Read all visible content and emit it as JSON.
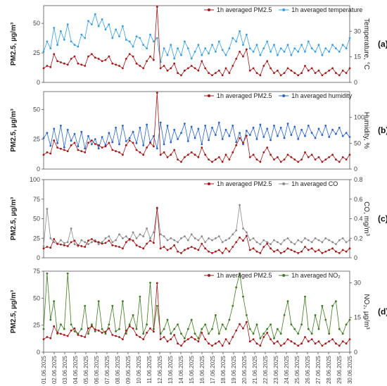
{
  "chart_data": [
    {
      "type": "line",
      "tag": "(a)",
      "ylabel": "PM2.5, µg/m³",
      "y2label": "Temperature, °C",
      "ylim": [
        0,
        65
      ],
      "yticks": [
        0,
        25,
        50
      ],
      "y2lim": [
        0,
        45
      ],
      "y2ticks": [
        0,
        15,
        30
      ],
      "legend_placement": "top-right",
      "series": [
        {
          "name": "1h averaged PM2.5",
          "axis": "left",
          "color": "#a01818",
          "marker": "circle",
          "values": [
            12,
            14,
            13,
            24,
            18,
            17,
            16,
            15,
            20,
            22,
            16,
            15,
            14,
            22,
            24,
            21,
            20,
            18,
            19,
            22,
            16,
            15,
            14,
            12,
            20,
            24,
            22,
            16,
            14,
            12,
            18,
            22,
            19,
            64,
            12,
            14,
            10,
            12,
            16,
            8,
            6,
            10,
            12,
            14,
            12,
            10,
            18,
            12,
            8,
            6,
            8,
            10,
            6,
            12,
            8,
            14,
            20,
            26,
            22,
            28,
            10,
            12,
            8,
            6,
            14,
            18,
            12,
            8,
            10,
            6,
            8,
            12,
            10,
            8,
            6,
            8,
            14,
            10,
            12,
            8,
            10,
            6,
            8,
            10,
            12,
            8,
            6,
            10,
            8,
            12
          ]
        },
        {
          "name": "1h averaged temperature",
          "axis": "right",
          "color": "#3a9de0",
          "marker": "circle",
          "values": [
            18,
            24,
            20,
            32,
            22,
            30,
            25,
            34,
            24,
            22,
            21,
            28,
            26,
            36,
            34,
            40,
            33,
            37,
            31,
            34,
            26,
            31,
            27,
            33,
            25,
            24,
            21,
            27,
            26,
            22,
            20,
            28,
            24,
            26,
            12,
            20,
            16,
            22,
            14,
            20,
            16,
            24,
            20,
            14,
            18,
            22,
            16,
            20,
            17,
            22,
            18,
            24,
            19,
            16,
            20,
            26,
            24,
            30,
            22,
            28,
            20,
            18,
            22,
            16,
            20,
            24,
            18,
            22,
            16,
            20,
            18,
            22,
            16,
            20,
            18,
            22,
            18,
            24,
            20,
            18,
            22,
            16,
            20,
            18,
            22,
            20,
            18,
            22,
            20,
            26
          ]
        }
      ]
    },
    {
      "type": "line",
      "tag": "(b)",
      "ylabel": "PM2.5, µg/m³",
      "y2label": "Humidity, %",
      "ylim": [
        0,
        65
      ],
      "yticks": [
        0,
        25,
        50
      ],
      "y2lim": [
        0,
        150
      ],
      "y2ticks": [
        0,
        50,
        100
      ],
      "legend_placement": "top-right",
      "series": [
        {
          "name": "1h averaged PM2.5",
          "axis": "left",
          "color": "#a01818",
          "marker": "circle",
          "values": [
            12,
            14,
            13,
            24,
            18,
            17,
            16,
            15,
            20,
            22,
            16,
            15,
            14,
            22,
            24,
            21,
            20,
            18,
            19,
            22,
            16,
            15,
            14,
            12,
            20,
            24,
            22,
            16,
            14,
            12,
            18,
            22,
            19,
            64,
            12,
            14,
            10,
            12,
            16,
            8,
            6,
            10,
            12,
            14,
            12,
            10,
            18,
            12,
            8,
            6,
            8,
            10,
            6,
            12,
            8,
            14,
            20,
            26,
            22,
            28,
            10,
            12,
            8,
            6,
            14,
            18,
            12,
            8,
            10,
            6,
            8,
            12,
            10,
            8,
            6,
            8,
            14,
            10,
            12,
            8,
            10,
            6,
            8,
            10,
            12,
            8,
            6,
            10,
            8,
            12
          ]
        },
        {
          "name": "1h averaged humidity",
          "axis": "right",
          "color": "#2a64c8",
          "marker": "circle",
          "values": [
            60,
            70,
            45,
            78,
            50,
            84,
            42,
            76,
            55,
            68,
            44,
            72,
            40,
            64,
            48,
            58,
            40,
            62,
            46,
            70,
            52,
            80,
            48,
            84,
            54,
            60,
            72,
            50,
            80,
            46,
            86,
            52,
            64,
            40,
            90,
            48,
            84,
            52,
            76,
            58,
            70,
            88,
            54,
            82,
            60,
            78,
            48,
            84,
            56,
            80,
            66,
            90,
            58,
            76,
            64,
            84,
            52,
            70,
            48,
            74,
            66,
            80,
            58,
            86,
            62,
            78,
            56,
            84,
            64,
            80,
            60,
            88,
            66,
            82,
            58,
            76,
            64,
            84,
            70,
            60,
            78,
            66,
            84,
            62,
            76,
            68,
            80,
            64,
            70,
            62
          ]
        }
      ]
    },
    {
      "type": "line",
      "tag": "(c)",
      "ylabel": "PM2.5, µg/m³",
      "y2label": "CO, mg/m³",
      "ylim": [
        0,
        100
      ],
      "yticks": [
        0,
        25,
        50,
        75,
        100
      ],
      "y2lim": [
        0,
        0.8
      ],
      "y2ticks": [
        0.0,
        0.2,
        0.4,
        0.6,
        0.8
      ],
      "legend_placement": "top-right",
      "series": [
        {
          "name": "1h averaged PM2.5",
          "axis": "left",
          "color": "#a01818",
          "marker": "circle",
          "values": [
            12,
            14,
            13,
            24,
            18,
            17,
            16,
            15,
            20,
            22,
            16,
            15,
            14,
            22,
            24,
            21,
            20,
            18,
            19,
            22,
            16,
            15,
            14,
            12,
            20,
            24,
            22,
            16,
            14,
            12,
            18,
            22,
            19,
            64,
            12,
            14,
            10,
            12,
            16,
            8,
            6,
            10,
            12,
            14,
            12,
            10,
            18,
            12,
            8,
            6,
            8,
            10,
            6,
            12,
            8,
            14,
            20,
            26,
            22,
            28,
            10,
            12,
            8,
            6,
            14,
            18,
            12,
            8,
            10,
            6,
            8,
            12,
            10,
            8,
            6,
            8,
            14,
            10,
            12,
            8,
            10,
            6,
            8,
            10,
            12,
            8,
            6,
            10,
            8,
            12
          ]
        },
        {
          "name": "1h averaged CO",
          "axis": "right",
          "color": "#8a8a8a",
          "marker": "circle",
          "values": [
            0.12,
            0.5,
            0.2,
            0.16,
            0.14,
            0.18,
            0.15,
            0.16,
            0.3,
            0.14,
            0.12,
            0.18,
            0.16,
            0.14,
            0.16,
            0.18,
            0.14,
            0.16,
            0.2,
            0.22,
            0.16,
            0.18,
            0.24,
            0.2,
            0.22,
            0.18,
            0.26,
            0.2,
            0.24,
            0.22,
            0.3,
            0.2,
            0.26,
            0.5,
            0.24,
            0.22,
            0.18,
            0.2,
            0.18,
            0.16,
            0.2,
            0.22,
            0.18,
            0.24,
            0.2,
            0.18,
            0.22,
            0.16,
            0.2,
            0.18,
            0.2,
            0.22,
            0.16,
            0.18,
            0.2,
            0.24,
            0.28,
            0.54,
            0.3,
            0.26,
            0.18,
            0.2,
            0.16,
            0.14,
            0.18,
            0.16,
            0.14,
            0.18,
            0.16,
            0.14,
            0.18,
            0.2,
            0.16,
            0.14,
            0.18,
            0.16,
            0.2,
            0.18,
            0.16,
            0.2,
            0.18,
            0.16,
            0.2,
            0.18,
            0.16,
            0.14,
            0.18,
            0.2,
            0.16,
            0.18
          ]
        }
      ]
    },
    {
      "type": "line",
      "tag": "(d)",
      "ylabel": "PM2.5, µg/m³",
      "y2label": "NO₂, µg/m³",
      "ylim": [
        0,
        75
      ],
      "yticks": [
        0,
        25,
        50,
        75
      ],
      "y2lim": [
        0,
        35
      ],
      "y2ticks": [
        0,
        15,
        30
      ],
      "legend_placement": "top-right",
      "series": [
        {
          "name": "1h averaged PM2.5",
          "axis": "left",
          "color": "#a01818",
          "marker": "circle",
          "values": [
            12,
            14,
            13,
            24,
            18,
            17,
            16,
            15,
            20,
            22,
            16,
            15,
            14,
            22,
            24,
            21,
            20,
            18,
            19,
            22,
            16,
            15,
            14,
            12,
            20,
            24,
            22,
            16,
            14,
            12,
            18,
            22,
            19,
            64,
            12,
            14,
            10,
            12,
            16,
            8,
            6,
            10,
            12,
            14,
            12,
            10,
            18,
            12,
            8,
            6,
            8,
            10,
            6,
            12,
            8,
            14,
            20,
            26,
            22,
            28,
            10,
            12,
            8,
            6,
            14,
            18,
            12,
            8,
            10,
            6,
            8,
            12,
            10,
            8,
            6,
            8,
            14,
            10,
            12,
            8,
            10,
            6,
            8,
            10,
            12,
            8,
            6,
            10,
            8,
            12
          ]
        },
        {
          "name": "1h averaged NO₂",
          "axis": "right",
          "color": "#3f7a22",
          "marker": "circle",
          "values": [
            10,
            34,
            14,
            22,
            8,
            12,
            10,
            34,
            12,
            9,
            8,
            10,
            20,
            8,
            12,
            9,
            22,
            10,
            8,
            12,
            20,
            9,
            10,
            22,
            8,
            12,
            16,
            10,
            24,
            8,
            12,
            30,
            10,
            20,
            8,
            10,
            14,
            8,
            10,
            12,
            8,
            6,
            10,
            14,
            8,
            6,
            10,
            12,
            8,
            10,
            16,
            8,
            12,
            10,
            14,
            20,
            28,
            34,
            24,
            16,
            10,
            8,
            12,
            6,
            8,
            10,
            12,
            6,
            10,
            8,
            16,
            22,
            12,
            10,
            8,
            12,
            24,
            10,
            8,
            16,
            10,
            20,
            14,
            8,
            20,
            22,
            10,
            8,
            12,
            14
          ]
        }
      ]
    }
  ],
  "x_tick_labels": [
    "01.06.2025",
    "02.06.2025",
    "03.06.2025",
    "04.06.2025",
    "05.06.2025",
    "06.06.2025",
    "07.06.2025",
    "08.06.2025",
    "09.06.2025",
    "10.06.2025",
    "11.06.2025",
    "12.06.2025",
    "13.06.2025",
    "14.06.2025",
    "15.06.2025",
    "16.06.2025",
    "17.06.2025",
    "18.06.2025",
    "19.06.2025",
    "20.06.2025",
    "21.06.2025",
    "22.06.2025",
    "23.06.2025",
    "24.06.2025",
    "25.06.2025",
    "26.06.2025",
    "27.06.2025",
    "28.06.2025",
    "29.06.2025",
    "30.06.2025"
  ]
}
